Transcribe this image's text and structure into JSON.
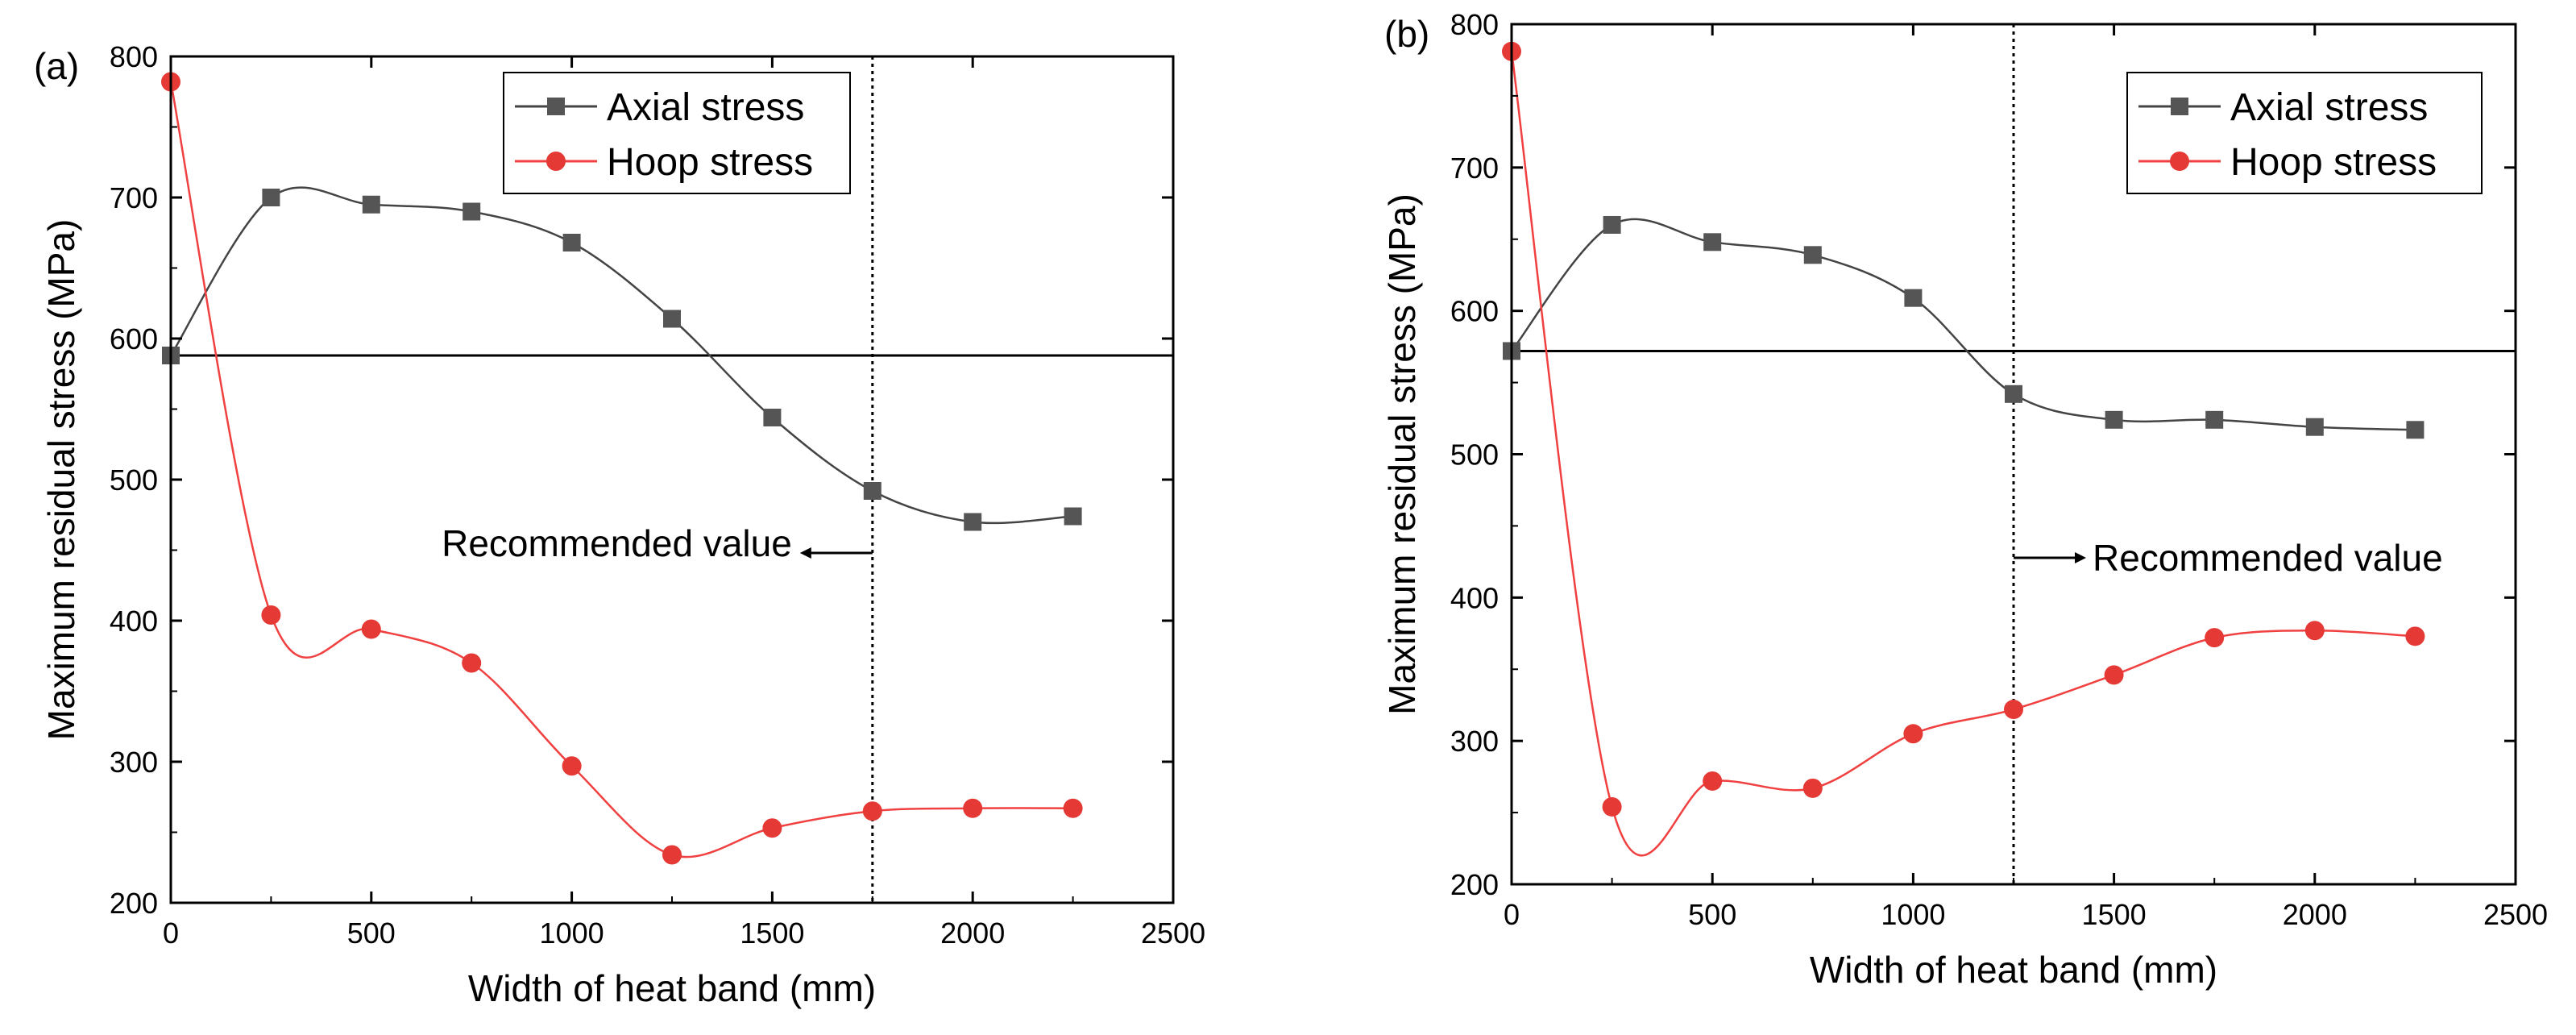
{
  "chart_data": [
    {
      "panel_label": "(a)",
      "type": "line",
      "xlabel": "Width of heat band (mm)",
      "ylabel": "Maximum residual stress (MPa)",
      "xlim": [
        0,
        2500
      ],
      "ylim": [
        200,
        800
      ],
      "xticks": [
        "0",
        "500",
        "1000",
        "1500",
        "2000",
        "2500"
      ],
      "yticks": [
        "200",
        "300",
        "400",
        "500",
        "600",
        "700",
        "800"
      ],
      "legend_position": "top-center",
      "series": [
        {
          "name": "Axial stress",
          "color": "#555555",
          "line_color": "#444444",
          "marker": "square",
          "x": [
            0,
            250,
            500,
            750,
            1000,
            1250,
            1500,
            1750,
            2000,
            2250
          ],
          "y": [
            588,
            700,
            695,
            690,
            668,
            614,
            544,
            492,
            470,
            474
          ]
        },
        {
          "name": "Hoop stress",
          "color": "#e53935",
          "line_color": "#f04040",
          "marker": "circle",
          "x": [
            0,
            250,
            500,
            750,
            1000,
            1250,
            1500,
            1750,
            2000,
            2250
          ],
          "y": [
            782,
            404,
            394,
            370,
            297,
            234,
            253,
            265,
            267,
            267
          ]
        }
      ],
      "reference_line": {
        "y": 588
      },
      "recommended_line": {
        "x": 1750
      },
      "annotation": {
        "text": "Recommended value",
        "arrow": "left"
      }
    },
    {
      "panel_label": "(b)",
      "type": "line",
      "xlabel": "Width of heat band (mm)",
      "ylabel": "Maximum residual stress (MPa)",
      "xlim": [
        0,
        2500
      ],
      "ylim": [
        200,
        800
      ],
      "xticks": [
        "0",
        "500",
        "1000",
        "1500",
        "2000",
        "2500"
      ],
      "yticks": [
        "200",
        "300",
        "400",
        "500",
        "600",
        "700",
        "800"
      ],
      "legend_position": "top-right",
      "series": [
        {
          "name": "Axial stress",
          "color": "#555555",
          "line_color": "#444444",
          "marker": "square",
          "x": [
            0,
            250,
            500,
            750,
            1000,
            1250,
            1500,
            1750,
            2000,
            2250
          ],
          "y": [
            572,
            660,
            648,
            639,
            609,
            542,
            524,
            524,
            519,
            517
          ]
        },
        {
          "name": "Hoop stress",
          "color": "#e53935",
          "line_color": "#f04040",
          "marker": "circle",
          "x": [
            0,
            250,
            500,
            750,
            1000,
            1250,
            1500,
            1750,
            2000,
            2250
          ],
          "y": [
            781,
            254,
            272,
            267,
            305,
            322,
            346,
            372,
            377,
            373
          ]
        }
      ],
      "reference_line": {
        "y": 572
      },
      "recommended_line": {
        "x": 1250
      },
      "annotation": {
        "text": "Recommended value",
        "arrow": "right"
      }
    }
  ]
}
